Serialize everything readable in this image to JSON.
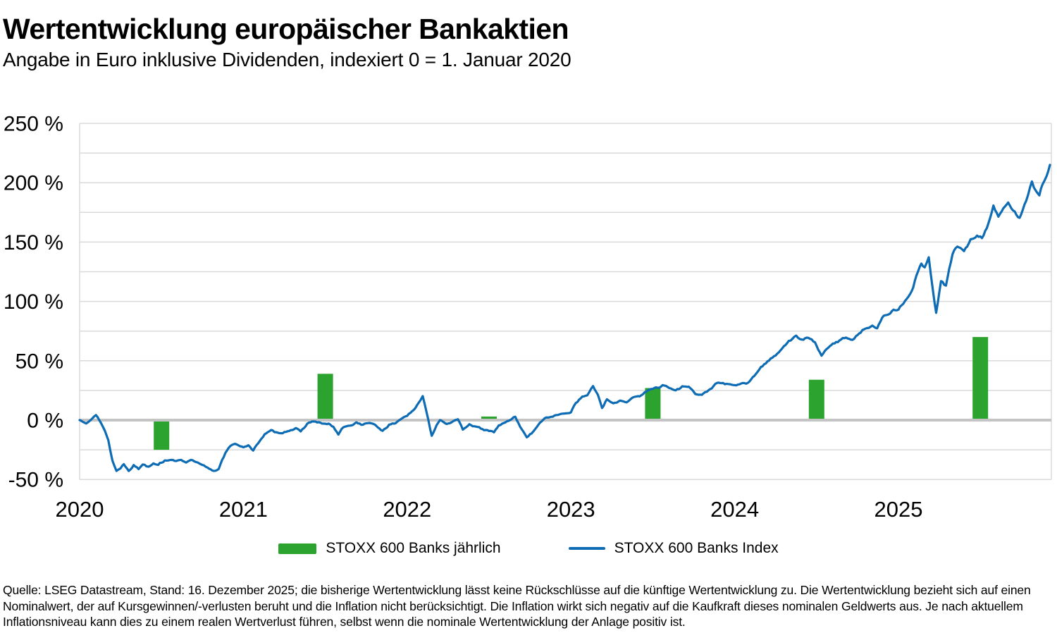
{
  "header": {
    "title": "Wertentwicklung europäischer Bankaktien",
    "subtitle": "Angabe in Euro inklusive Dividenden, indexiert 0 = 1. Januar 2020"
  },
  "legend": [
    {
      "label": "STOXX 600 Banks jährlich",
      "swatch": "bar"
    },
    {
      "label": "STOXX 600 Banks Index",
      "swatch": "line"
    }
  ],
  "footnote": "Quelle: LSEG Datastream, Stand: 16. Dezember 2025; die bisherige Wertentwicklung lässt keine Rückschlüsse auf die künftige Wertentwicklung zu. Die Wertentwicklung bezieht sich auf einen Nominalwert, der auf Kursgewinnen/-verlusten beruht und die Inflation nicht berücksichtigt. Die Inflation wirkt sich negativ auf die Kaufkraft dieses nominalen Geldwerts aus. Je nach aktuellem Inflationsniveau kann dies zu einem realen Wertverlust führen, selbst wenn die nominale Wertentwicklung der Anlage positiv ist.",
  "colors": {
    "bar": "#2ba32e",
    "line": "#0d6cb4",
    "grid": "#dadada",
    "zero_line": "#c4c4c4",
    "axis_text": "#000000"
  },
  "chart_data": {
    "type": "line+bar",
    "title": "Wertentwicklung europäischer Bankaktien",
    "subtitle": "Angabe in Euro inklusive Dividenden, indexiert 0 = 1. Januar 2020",
    "xlabel": "",
    "ylabel": "",
    "ylim": [
      -50,
      250
    ],
    "grid_step_pct": 25,
    "y_ticks": [
      "250 %",
      "200 %",
      "150 %",
      "100 %",
      "50 %",
      "0 %",
      "-50 %"
    ],
    "y_tick_values": [
      250,
      200,
      150,
      100,
      50,
      0,
      -50
    ],
    "x_ticks": [
      "2020",
      "2021",
      "2022",
      "2023",
      "2024",
      "2025"
    ],
    "x_tick_values": [
      2020,
      2021,
      2022,
      2023,
      2024,
      2025
    ],
    "legend_position": "bottom-center",
    "series": [
      {
        "name": "STOXX 600 Banks jährlich",
        "type": "bar",
        "categories": [
          2020,
          2021,
          2022,
          2023,
          2024,
          2025
        ],
        "values": [
          -25,
          39,
          3,
          27,
          34,
          70
        ],
        "unit": "%",
        "bar_position": "mid-year"
      },
      {
        "name": "STOXX 600 Banks Index",
        "type": "line",
        "unit": "%",
        "x_unit": "years_since_2020-01-01",
        "points": [
          [
            0,
            0
          ],
          [
            0.04,
            -2
          ],
          [
            0.07,
            1
          ],
          [
            0.1,
            4
          ],
          [
            0.13,
            -2
          ],
          [
            0.155,
            -9
          ],
          [
            0.175,
            -17
          ],
          [
            0.2,
            -34
          ],
          [
            0.225,
            -43
          ],
          [
            0.25,
            -40
          ],
          [
            0.27,
            -37
          ],
          [
            0.3,
            -42
          ],
          [
            0.33,
            -38
          ],
          [
            0.36,
            -41
          ],
          [
            0.385,
            -37
          ],
          [
            0.42,
            -39
          ],
          [
            0.45,
            -36
          ],
          [
            0.48,
            -37
          ],
          [
            0.52,
            -34
          ],
          [
            0.55,
            -33
          ],
          [
            0.58,
            -35
          ],
          [
            0.61,
            -33
          ],
          [
            0.65,
            -35
          ],
          [
            0.69,
            -34
          ],
          [
            0.73,
            -37
          ],
          [
            0.76,
            -39
          ],
          [
            0.8,
            -42
          ],
          [
            0.82,
            -43
          ],
          [
            0.85,
            -41
          ],
          [
            0.87,
            -33
          ],
          [
            0.9,
            -25
          ],
          [
            0.93,
            -21
          ],
          [
            0.96,
            -20.5
          ],
          [
            1,
            -22.5
          ],
          [
            1.03,
            -21
          ],
          [
            1.06,
            -26
          ],
          [
            1.1,
            -17
          ],
          [
            1.13,
            -12
          ],
          [
            1.17,
            -9
          ],
          [
            1.21,
            -11
          ],
          [
            1.25,
            -10
          ],
          [
            1.29,
            -8
          ],
          [
            1.32,
            -7
          ],
          [
            1.35,
            -10
          ],
          [
            1.39,
            -3
          ],
          [
            1.42,
            -1
          ],
          [
            1.46,
            -2
          ],
          [
            1.49,
            -3.5
          ],
          [
            1.52,
            -3
          ],
          [
            1.55,
            -6
          ],
          [
            1.58,
            -12
          ],
          [
            1.61,
            -6
          ],
          [
            1.65,
            -5
          ],
          [
            1.69,
            -2
          ],
          [
            1.73,
            -4
          ],
          [
            1.77,
            -2
          ],
          [
            1.81,
            -5
          ],
          [
            1.85,
            -9
          ],
          [
            1.89,
            -4
          ],
          [
            1.93,
            -2.5
          ],
          [
            1.97,
            2
          ],
          [
            2,
            4
          ],
          [
            2.04,
            8
          ],
          [
            2.07,
            14
          ],
          [
            2.095,
            20.5
          ],
          [
            2.12,
            6
          ],
          [
            2.15,
            -13
          ],
          [
            2.18,
            -4
          ],
          [
            2.2,
            0.5
          ],
          [
            2.24,
            -3
          ],
          [
            2.28,
            -1
          ],
          [
            2.31,
            0
          ],
          [
            2.34,
            -8
          ],
          [
            2.38,
            -3
          ],
          [
            2.42,
            -6
          ],
          [
            2.46,
            -7.5
          ],
          [
            2.5,
            -9.5
          ],
          [
            2.53,
            -10
          ],
          [
            2.56,
            -4.5
          ],
          [
            2.6,
            -2
          ],
          [
            2.64,
            1
          ],
          [
            2.66,
            3
          ],
          [
            2.7,
            -8
          ],
          [
            2.73,
            -14
          ],
          [
            2.77,
            -10
          ],
          [
            2.81,
            -2
          ],
          [
            2.85,
            2
          ],
          [
            2.89,
            3.5
          ],
          [
            2.93,
            4.5
          ],
          [
            2.97,
            6
          ],
          [
            3,
            7
          ],
          [
            3.03,
            15
          ],
          [
            3.07,
            19.5
          ],
          [
            3.1,
            21
          ],
          [
            3.135,
            29
          ],
          [
            3.165,
            21
          ],
          [
            3.19,
            9.5
          ],
          [
            3.22,
            17.5
          ],
          [
            3.26,
            13.5
          ],
          [
            3.3,
            16.5
          ],
          [
            3.34,
            15.3
          ],
          [
            3.38,
            19.5
          ],
          [
            3.42,
            20.5
          ],
          [
            3.46,
            24
          ],
          [
            3.5,
            26.5
          ],
          [
            3.54,
            28
          ],
          [
            3.56,
            30
          ],
          [
            3.6,
            27
          ],
          [
            3.64,
            25
          ],
          [
            3.68,
            28
          ],
          [
            3.72,
            29
          ],
          [
            3.76,
            22
          ],
          [
            3.8,
            21
          ],
          [
            3.84,
            25
          ],
          [
            3.89,
            31
          ],
          [
            3.93,
            31
          ],
          [
            3.97,
            29.5
          ],
          [
            4,
            29
          ],
          [
            4.04,
            31
          ],
          [
            4.08,
            31
          ],
          [
            4.12,
            37
          ],
          [
            4.16,
            45
          ],
          [
            4.2,
            49
          ],
          [
            4.25,
            55
          ],
          [
            4.29,
            61
          ],
          [
            4.33,
            66.5
          ],
          [
            4.375,
            70.5
          ],
          [
            4.41,
            67.5
          ],
          [
            4.45,
            69.5
          ],
          [
            4.49,
            65
          ],
          [
            4.53,
            55
          ],
          [
            4.56,
            59
          ],
          [
            4.6,
            64
          ],
          [
            4.64,
            67
          ],
          [
            4.68,
            70
          ],
          [
            4.72,
            68
          ],
          [
            4.76,
            73
          ],
          [
            4.8,
            78
          ],
          [
            4.84,
            80
          ],
          [
            4.87,
            77
          ],
          [
            4.91,
            88
          ],
          [
            4.95,
            91
          ],
          [
            5,
            94
          ],
          [
            5.04,
            100
          ],
          [
            5.06,
            104
          ],
          [
            5.09,
            112
          ],
          [
            5.12,
            126
          ],
          [
            5.14,
            131
          ],
          [
            5.16,
            128
          ],
          [
            5.185,
            136
          ],
          [
            5.21,
            110
          ],
          [
            5.23,
            91
          ],
          [
            5.26,
            117
          ],
          [
            5.29,
            113
          ],
          [
            5.33,
            140
          ],
          [
            5.36,
            147
          ],
          [
            5.4,
            141
          ],
          [
            5.44,
            152
          ],
          [
            5.48,
            156
          ],
          [
            5.51,
            153
          ],
          [
            5.55,
            166
          ],
          [
            5.58,
            181
          ],
          [
            5.61,
            172
          ],
          [
            5.64,
            177
          ],
          [
            5.67,
            183
          ],
          [
            5.7,
            176
          ],
          [
            5.74,
            171
          ],
          [
            5.78,
            186
          ],
          [
            5.815,
            202
          ],
          [
            5.84,
            193
          ],
          [
            5.86,
            188
          ],
          [
            5.88,
            199
          ],
          [
            5.905,
            207
          ],
          [
            5.925,
            215
          ]
        ]
      }
    ]
  }
}
